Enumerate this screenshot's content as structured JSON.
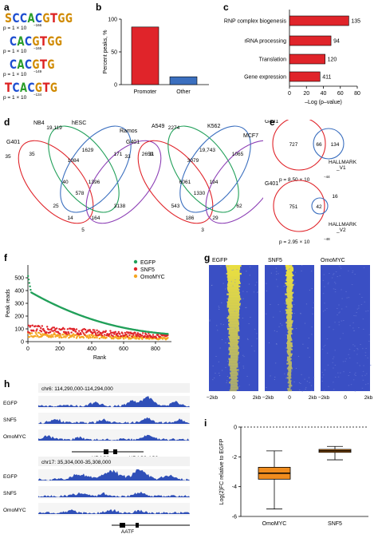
{
  "panels": {
    "a": {
      "letter": "a",
      "motifs": [
        {
          "letters": [
            "S",
            "C",
            "C",
            "A",
            "C",
            "G",
            "T",
            "G",
            "G"
          ],
          "colors": [
            "#d08a00",
            "#1f4fd1",
            "#1f4fd1",
            "#2a9d2a",
            "#1f4fd1",
            "#d08a00",
            "#d22",
            "#d08a00",
            "#d08a00"
          ],
          "pvalue": "p = 1 × 10",
          "exp": "−166"
        },
        {
          "letters": [
            "C",
            "A",
            "C",
            "G",
            "T",
            "G",
            "G"
          ],
          "colors": [
            "#1f4fd1",
            "#2a9d2a",
            "#1f4fd1",
            "#d08a00",
            "#d22",
            "#d08a00",
            "#d08a00"
          ],
          "pvalue": "p = 1 × 10",
          "exp": "−165"
        },
        {
          "letters": [
            "C",
            "A",
            "C",
            "G",
            "T",
            "G"
          ],
          "colors": [
            "#1f4fd1",
            "#2a9d2a",
            "#1f4fd1",
            "#d08a00",
            "#d22",
            "#d08a00"
          ],
          "pvalue": "p = 1 × 10",
          "exp": "−149"
        },
        {
          "letters": [
            "T",
            "C",
            "A",
            "C",
            "G",
            "T",
            "G"
          ],
          "colors": [
            "#d22",
            "#1f4fd1",
            "#2a9d2a",
            "#1f4fd1",
            "#d08a00",
            "#d22",
            "#d08a00"
          ],
          "pvalue": "p = 1 × 10",
          "exp": "−134"
        }
      ]
    },
    "b": {
      "letter": "b",
      "chart_data": {
        "type": "bar",
        "categories": [
          "Promoter",
          "Other"
        ],
        "values": [
          88,
          12
        ],
        "colors": [
          "#e0242a",
          "#3b6fbf"
        ],
        "ylabel": "Percent peaks, %",
        "ylim": [
          0,
          100
        ],
        "yticks": [
          0,
          50,
          100
        ]
      }
    },
    "c": {
      "letter": "c",
      "chart_data": {
        "type": "bar",
        "orientation": "horizontal",
        "categories": [
          "RNP complex biogenesis",
          "rRNA processing",
          "Translation",
          "Gene expression"
        ],
        "values": [
          70,
          49,
          42,
          36
        ],
        "value_labels": [
          "135",
          "94",
          "120",
          "411"
        ],
        "color": "#e0242a",
        "xlabel": "–Log (p–value)",
        "xlim": [
          0,
          80
        ],
        "xticks": [
          0,
          20,
          40,
          60,
          80
        ]
      }
    },
    "d": {
      "letter": "d",
      "venn1": {
        "sets": [
          "G401",
          "NB4",
          "hESC",
          "Ramos"
        ],
        "numbers": [
          "19,119",
          "1629",
          "35",
          "1084",
          "171",
          "2659",
          "40",
          "1396",
          "578",
          "25",
          "3138",
          "14",
          "164",
          "5",
          "35"
        ]
      },
      "venn2": {
        "sets": [
          "G401",
          "A549",
          "K562",
          "MCF7"
        ],
        "numbers": [
          "2274",
          "19,743",
          "11",
          "3079",
          "1065",
          "32",
          "6061",
          "194",
          "1330",
          "543",
          "62",
          "186",
          "29",
          "3",
          "33"
        ]
      }
    },
    "e": {
      "letter": "e",
      "venn1": {
        "set_a": "G401",
        "set_b": "HALLMARK",
        "set_b2": "_V1",
        "a_only": "727",
        "both": "66",
        "b_only": "134",
        "pvalue": "p = 8.50 × 10",
        "exp": "−44"
      },
      "venn2": {
        "set_a": "G401",
        "set_b": "HALLMARK",
        "set_b2": "_V2",
        "a_only": "751",
        "both": "42",
        "b_only": "16",
        "pvalue": "p = 2.95 × 10",
        "exp": "−48"
      }
    },
    "f": {
      "letter": "f",
      "chart_data": {
        "type": "scatter",
        "series": [
          {
            "name": "EGFP",
            "color": "#22a05a"
          },
          {
            "name": "SNF5",
            "color": "#e0242a"
          },
          {
            "name": "OmoMYC",
            "color": "#f5a623"
          }
        ],
        "xlabel": "Rank",
        "ylabel": "Peak reads",
        "xlim": [
          0,
          900
        ],
        "ylim": [
          0,
          600
        ],
        "xticks": [
          0,
          200,
          400,
          600,
          800
        ],
        "yticks": [
          0,
          100,
          200,
          300,
          400,
          500
        ],
        "n_points": 880
      }
    },
    "g": {
      "letter": "g",
      "heatmaps": [
        "EGFP",
        "SNF5",
        "OmoMYC"
      ],
      "xticks": [
        "−2kb",
        "0",
        "2kb"
      ]
    },
    "h": {
      "letter": "h",
      "track1": {
        "coords": "chr6: 114,290,000-114,294,000",
        "tracks": [
          "EGFP",
          "SNF5",
          "OmoMYC"
        ],
        "genes": [
          "HDAC2",
          "HDAC2-AS2"
        ]
      },
      "track2": {
        "coords": "chr17: 35,304,000-35,308,000",
        "tracks": [
          "EGFP",
          "SNF5",
          "OmoMYC"
        ],
        "genes": [
          "AATF"
        ]
      }
    },
    "i": {
      "letter": "i",
      "chart_data": {
        "type": "box",
        "categories": [
          "OmoMYC",
          "SNF5"
        ],
        "boxes": [
          {
            "min": -5.5,
            "q1": -3.5,
            "median": -3.1,
            "q3": -2.7,
            "max": -1.6,
            "color": "#f08c1e"
          },
          {
            "min": -2.2,
            "q1": -1.7,
            "median": -1.6,
            "q3": -1.5,
            "max": -1.3,
            "color": "#f08c1e"
          }
        ],
        "ylabel": "Log(2)FC relative to EGFP",
        "ylim": [
          -6,
          0
        ],
        "yticks": [
          0,
          -2,
          -4,
          -6
        ]
      }
    }
  }
}
